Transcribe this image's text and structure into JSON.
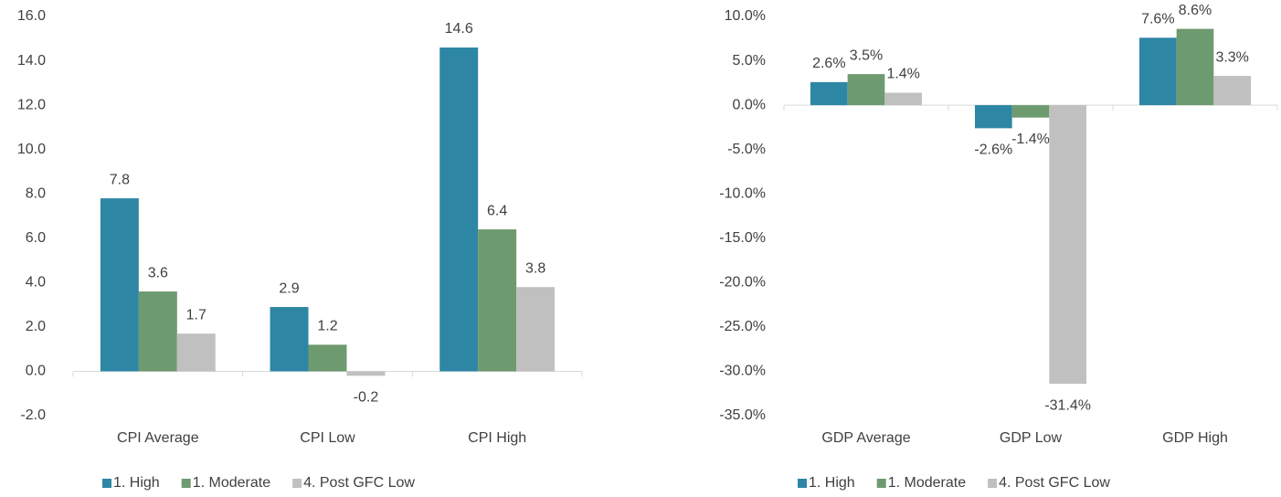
{
  "chart_data": [
    {
      "type": "bar",
      "categories": [
        "CPI Average",
        "CPI Low",
        "CPI High"
      ],
      "series": [
        {
          "name": "1. High",
          "color": "#2e86a5",
          "values": [
            7.8,
            2.9,
            14.6
          ]
        },
        {
          "name": "1. Moderate",
          "color": "#6e9a70",
          "values": [
            3.6,
            1.2,
            6.4
          ]
        },
        {
          "name": "4. Post GFC Low",
          "color": "#c0c0c0",
          "values": [
            1.7,
            -0.2,
            3.8
          ]
        }
      ],
      "ylim": [
        -2,
        16
      ],
      "yticks": [
        {
          "value": -2,
          "label": "-2.0"
        },
        {
          "value": 0,
          "label": "0.0"
        },
        {
          "value": 2,
          "label": "2.0"
        },
        {
          "value": 4,
          "label": "4.0"
        },
        {
          "value": 6,
          "label": "6.0"
        },
        {
          "value": 8,
          "label": "8.0"
        },
        {
          "value": 10,
          "label": "10.0"
        },
        {
          "value": 12,
          "label": "12.0"
        },
        {
          "value": 14,
          "label": "14.0"
        },
        {
          "value": 16,
          "label": "16.0"
        }
      ],
      "legend": "bottom"
    },
    {
      "type": "bar",
      "categories": [
        "GDP Average",
        "GDP Low",
        "GDP High"
      ],
      "series": [
        {
          "name": "1. High",
          "color": "#2e86a5",
          "values": [
            2.6,
            -2.6,
            7.6
          ],
          "value_labels": [
            "2.6%",
            "-2.6%",
            "7.6%"
          ]
        },
        {
          "name": "1. Moderate",
          "color": "#6e9a70",
          "values": [
            3.5,
            -1.4,
            8.6
          ],
          "value_labels": [
            "3.5%",
            "-1.4%",
            "8.6%"
          ]
        },
        {
          "name": "4. Post GFC Low",
          "color": "#c0c0c0",
          "values": [
            1.4,
            -31.4,
            3.3
          ],
          "value_labels": [
            "1.4%",
            "-31.4%",
            "3.3%"
          ]
        }
      ],
      "ylim": [
        -35,
        10
      ],
      "yticks": [
        {
          "value": -35,
          "label": "-35.0%"
        },
        {
          "value": -30,
          "label": "-30.0%"
        },
        {
          "value": -25,
          "label": "-25.0%"
        },
        {
          "value": -20,
          "label": "-20.0%"
        },
        {
          "value": -15,
          "label": "-15.0%"
        },
        {
          "value": -10,
          "label": "-10.0%"
        },
        {
          "value": -5,
          "label": "-5.0%"
        },
        {
          "value": 0,
          "label": "0.0%"
        },
        {
          "value": 5,
          "label": "5.0%"
        },
        {
          "value": 10,
          "label": "10.0%"
        }
      ],
      "legend": "bottom"
    }
  ]
}
